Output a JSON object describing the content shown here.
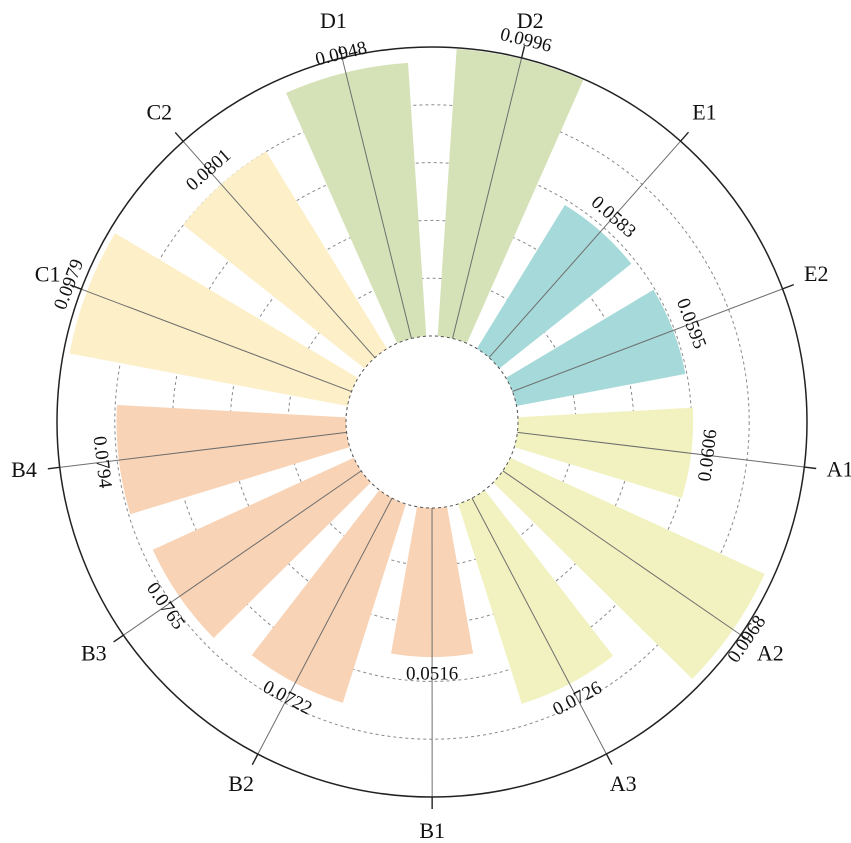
{
  "chart_data": {
    "type": "polar-bar",
    "title": "",
    "categories": [
      "A1",
      "A2",
      "A3",
      "B1",
      "B2",
      "B3",
      "B4",
      "C1",
      "C2",
      "D1",
      "D2",
      "E1",
      "E2"
    ],
    "values": [
      0.0606,
      0.0968,
      0.0726,
      0.0516,
      0.0722,
      0.0765,
      0.0794,
      0.0979,
      0.0801,
      0.0948,
      0.0996,
      0.0583,
      0.0595
    ],
    "value_labels": [
      "0.0606",
      "0.0968",
      "0.0726",
      "0.0516",
      "0.0722",
      "0.0765",
      "0.0794",
      "0.0979",
      "0.0801",
      "0.0948",
      "0.0996",
      "0.0583",
      "0.0595"
    ],
    "groups": {
      "A": [
        "A1",
        "A2",
        "A3"
      ],
      "B": [
        "B1",
        "B2",
        "B3",
        "B4"
      ],
      "C": [
        "C1",
        "C2"
      ],
      "D": [
        "D1",
        "D2"
      ],
      "E": [
        "E1",
        "E2"
      ]
    },
    "group_colors": {
      "A": "#F1F2C0",
      "B": "#F8D3B5",
      "C": "#FDEFC8",
      "D": "#D5E2B7",
      "E": "#A6D9D9"
    },
    "r_range": [
      0,
      0.1
    ],
    "grid": true
  }
}
